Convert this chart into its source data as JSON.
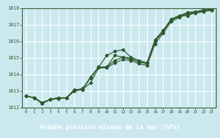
{
  "title": "Graphe pression niveau de la mer (hPa)",
  "bg_color": "#cce8ef",
  "grid_color": "#ffffff",
  "line_color": "#2d5a2d",
  "marker_color": "#2d5a2d",
  "xlabel_bg": "#3a7a3a",
  "xlabel_fg": "#ffffff",
  "xlim": [
    -0.5,
    23.5
  ],
  "ylim": [
    1012,
    1018
  ],
  "xticks": [
    0,
    1,
    2,
    3,
    4,
    5,
    6,
    7,
    8,
    9,
    10,
    11,
    12,
    13,
    14,
    15,
    16,
    17,
    18,
    19,
    20,
    21,
    22,
    23
  ],
  "yticks": [
    1012,
    1013,
    1014,
    1015,
    1016,
    1017,
    1018
  ],
  "line1": [
    1012.7,
    1012.6,
    1012.3,
    1012.5,
    1012.6,
    1012.6,
    1013.1,
    1013.1,
    1013.8,
    1014.45,
    1014.45,
    1015.15,
    1015.05,
    1014.9,
    1014.8,
    1014.7,
    1016.1,
    1016.65,
    1017.35,
    1017.55,
    1017.55,
    1017.75,
    1017.85,
    1017.9
  ],
  "line2": [
    1012.7,
    1012.6,
    1012.3,
    1012.5,
    1012.6,
    1012.6,
    1013.05,
    1013.1,
    1013.85,
    1014.45,
    1015.15,
    1015.4,
    1015.5,
    1015.05,
    1014.85,
    1014.7,
    1016.1,
    1016.65,
    1017.35,
    1017.55,
    1017.75,
    1017.8,
    1017.9,
    1017.95
  ],
  "line3": [
    1012.7,
    1012.6,
    1012.25,
    1012.5,
    1012.55,
    1012.6,
    1013.05,
    1013.15,
    1013.8,
    1014.45,
    1014.45,
    1014.85,
    1015.05,
    1015.0,
    1014.75,
    1014.65,
    1016.0,
    1016.6,
    1017.3,
    1017.5,
    1017.7,
    1017.75,
    1017.85,
    1017.9
  ],
  "line4": [
    1012.7,
    1012.6,
    1012.25,
    1012.48,
    1012.55,
    1012.58,
    1013.0,
    1013.1,
    1013.5,
    1014.4,
    1014.4,
    1014.7,
    1014.9,
    1014.85,
    1014.65,
    1014.55,
    1015.85,
    1016.5,
    1017.2,
    1017.45,
    1017.65,
    1017.7,
    1017.8,
    1017.88
  ]
}
